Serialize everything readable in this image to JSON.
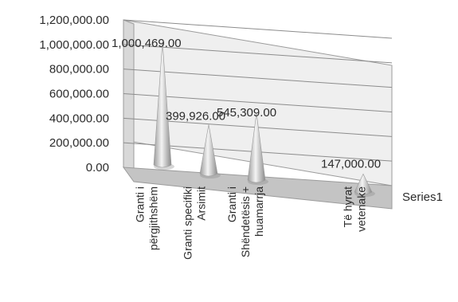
{
  "chart_data": {
    "type": "bar",
    "style": "3d-cone",
    "series": [
      {
        "name": "Series1",
        "values": [
          1000469.0,
          399926.0,
          545309.0,
          147000.0
        ]
      }
    ],
    "categories": [
      [
        "Granti i",
        "përgjithshëm"
      ],
      [
        "Granti specifiki",
        "Arsimit"
      ],
      [
        "Granti i",
        "Shëndetësis +",
        "huamarrja"
      ],
      [
        "Të hyrat",
        "vetenake"
      ]
    ],
    "data_labels": [
      "1,000,469.00",
      "399,926.00",
      "545,309.00",
      "147,000.00"
    ],
    "y_ticks": [
      "0.00",
      "200,000.00",
      "400,000.00",
      "600,000.00",
      "800,000.00",
      "1,000,000.00",
      "1,200,000.00"
    ],
    "ylim": [
      0,
      1200000
    ],
    "grid": true,
    "legend": "right",
    "colors": {
      "cone": "#d9d9d9",
      "cone_shadow": "#8a8a8a",
      "wall": "#e6e6e6",
      "floor": "#bdbdbd",
      "grid": "#8c8c8c"
    }
  }
}
